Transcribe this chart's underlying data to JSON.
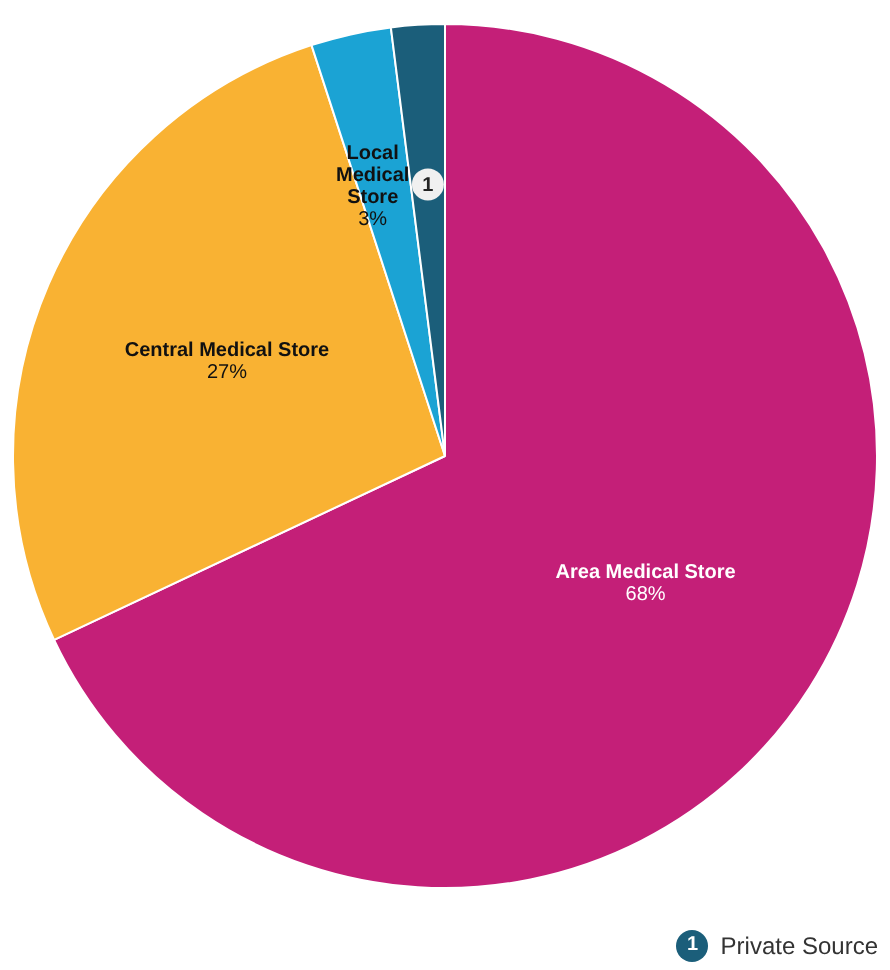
{
  "chart_data": {
    "type": "pie",
    "categories": [
      "Area Medical Store",
      "Central Medical Store",
      "Local Medical Store",
      "Private Source"
    ],
    "values": [
      68,
      27,
      3,
      2
    ],
    "colors": [
      "#c41f78",
      "#f9b233",
      "#1ba3d4",
      "#1b5e7a"
    ],
    "value_labels": [
      "68%",
      "27%",
      "3%",
      null
    ],
    "annotations": [
      "1"
    ],
    "legend": "bottom right"
  }
}
